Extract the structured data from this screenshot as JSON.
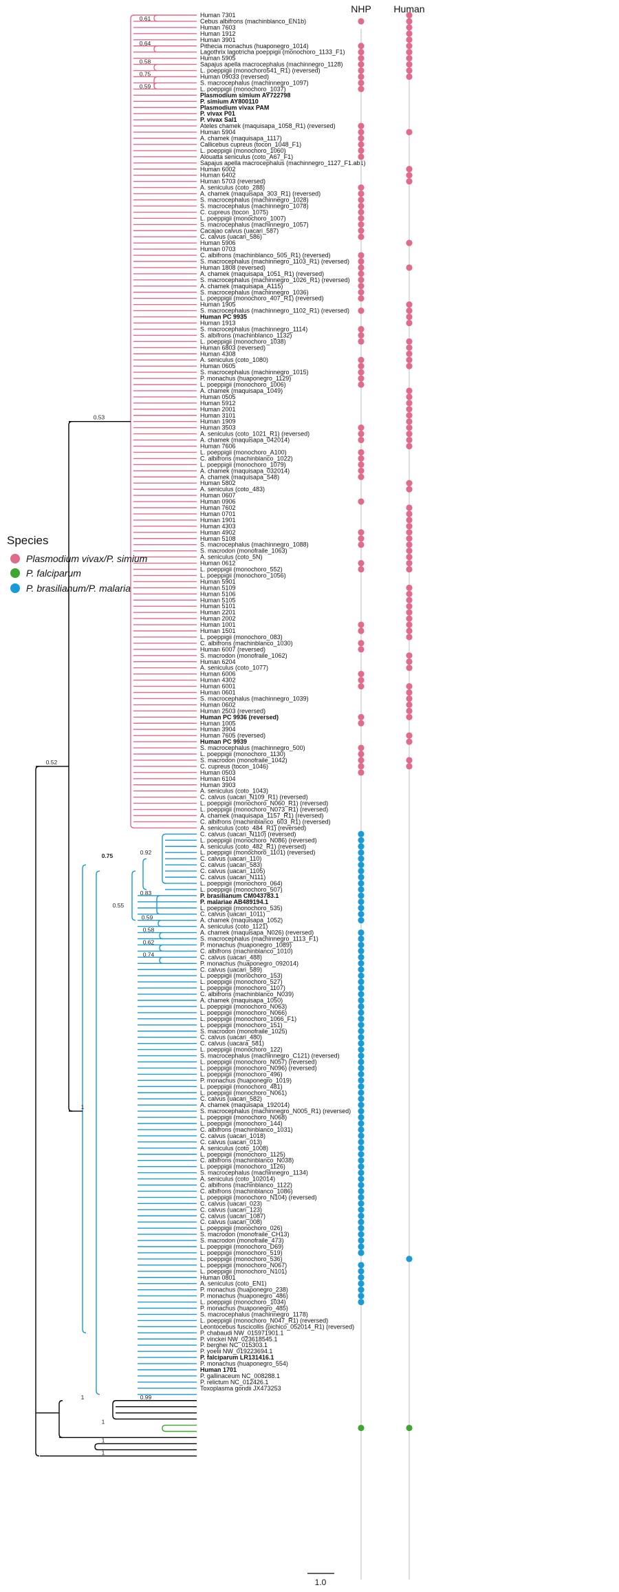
{
  "colors": {
    "vivax": "#e06b8b",
    "brasilianum": "#1a9ad6",
    "falciparum": "#3ea52e",
    "outgroup": "#000000",
    "track": "#d4d4d4"
  },
  "columns": {
    "nhp": "NHP",
    "human": "Human"
  },
  "legend": {
    "title": "Species",
    "items": [
      {
        "label": "Plasmodium vivax/P. simium",
        "color": "#e06b8b"
      },
      {
        "label": "P. falciparum",
        "color": "#3ea52e"
      },
      {
        "label": "P. brasilianum/P. malaria",
        "color": "#1a9ad6"
      }
    ]
  },
  "scale_bar": {
    "label": "1.0"
  },
  "clades": {
    "vivax": {
      "count": 133
    },
    "brasilianum": {
      "count": 92
    }
  },
  "supports": {
    "root_inner": "0.52",
    "vivax": "0.53",
    "brasilianum": "1",
    "brasilianum_sub": "0.75",
    "n92": "0.92",
    "n55": "0.55",
    "n83": "0.83",
    "n59": "0.59",
    "n58": "0.58",
    "n62": "0.62",
    "n74": "0.74",
    "v61": "0.61",
    "v64": "0.64",
    "v58": "0.58",
    "v75": "0.75",
    "v59": "0.59",
    "o99": "0.99",
    "o1a": "1",
    "o1b": "1",
    "o1c": "1",
    "o1d": "1"
  },
  "tips": [
    "Human 7301",
    "Cebus albifrons (machinblanco_EN1b)",
    "Human 7603",
    "Human 1912",
    "Human 3901",
    "Pithecia monachus (huaponegro_1014)",
    "Lagothrix lagotricha poeppigii (monochoro_1133_F1)",
    "Human 5905",
    "Sapajus apella macrocephalus (machinnegro_1128)",
    "L. poeppigii (monochoro541_R1) (reversed)",
    "Human 09033 (reversed)",
    "S. macrocephalus (machinnegro_1097)",
    "L. poeppigii (monochoro_1037)",
    "Plasmodium simium AY722798",
    "P. simium AY800110",
    "Plasmodium vivax PAM",
    "P. vivax P01",
    "P. vivax Sal1",
    "Ateles chamek (maquisapa_1058_R1) (reversed)",
    "Human 5904",
    "A. chamek (maquisapa_1117)",
    "Callicebus cupreus (tocon_1048_F1)",
    "L. poeppigii (monochoro_1060)",
    "Alouatta seniculus (coto_A67_F1)",
    "Sapajus apella macrocephalus (machinnegro_1127_F1.ab1)",
    "Human 6002",
    "Human 6402",
    "Human 5703 (reversed)",
    "A. seniculus (coto_288)",
    "A. chamek (maquisapa_303_R1) (reversed)",
    "S. macrocephalus (machinnegro_1028)",
    "S. macrocephalus (machinnegro_1078)",
    "C. cupreus (tocon_1075)",
    "L. poeppigii (monochoro_1007)",
    "S. macrocephalus (machinnegro_1057)",
    "Cacajao calvus (uacari_587)",
    "C. calvus (uacari_586)",
    "Human 5906",
    "Human 0703",
    "C. albifrons (machinblanco_505_R1) (reversed)",
    "S. macrocephalus (machinnegro_1103_R1) (reversed)",
    "Human 1808 (reversed)",
    "A. chamek (maquisapa_1051_R1) (reversed)",
    "S. macrocephalus (machinnegro_1026_R1) (reversed)",
    "A. chamek (maquisapa_A115)",
    "S. macrocephalus (machinnegro_1036)",
    "L. poeppigii (monochoro_407_R1) (reversed)",
    "Human 1905",
    "S. macrocephalus (machinnegro_1102_R1) (reversed)",
    "Human PC 9935",
    "Human 1913",
    "S. macrocephalus (machinnegro_1114)",
    "S. albifrons (machinblanco_1132)",
    "L. poeppigii (monochoro_1038)",
    "Human 6803 (reversed)",
    "Human 4308",
    "A. seniculus (coto_1080)",
    "Human 0605",
    "S. macrocephalus (machinnegro_1015)",
    "P. monachus (huaponegro_1129)",
    "L. poeppigii (monochoro_1006)",
    "A. chamek (maquisapa_1049)",
    "Human 0505",
    "Human 5912",
    "Human 2001",
    "Human 3101",
    "Human 1909",
    "Human 3503",
    "A. seniculus (coto_1021_R1) (reversed)",
    "A. chamek (maquisapa_042014)",
    "Human 7606",
    "L. poeppigii (monochoro_A100)",
    "C. albifrons (machinblanco_1022)",
    "L. poeppigii (monochoro_1079)",
    "A. chamek (maquisapa_032014)",
    "A. chamek (maquisapa_548)",
    "Human 5802",
    "A. seniculus (coto_483)",
    "Human 0607",
    "Human 0906",
    "Human 7602",
    "Human 0701",
    "Human 1901",
    "Human 4303",
    "Human 4902",
    "Human 5108",
    "S. macrocephalus (machinnegro_1088)",
    "S. macrodon (monofraile_1063)",
    "A. seniculus (coto_5N)",
    "Human 0612",
    "L. poeppigii (monochoro_552)",
    "L. poeppigii (monochoro_1056)",
    "Human 5901",
    "Human 5109",
    "Human 5106",
    "Human 5105",
    "Human 5101",
    "Human 2201",
    "Human 2002",
    "Human 1001",
    "Human 1501",
    "L. poeppigii (monochoro_083)",
    "C. albifrons (machinblanco_1030)",
    "Human 6007 (reversed)",
    "S. macrodon (monofraile_1062)",
    "Human 6204",
    "A. seniculus (coto_1077)",
    "Human 6006",
    "Human 4302",
    "Human 6001",
    "Human 0601",
    "S. macrocephalus (machinnegro_1039)",
    "Human 0602",
    "Human 2503 (reversed)",
    "Human PC 9936 (reversed)",
    "Human 1005",
    "Human 3904",
    "Human 7605 (reversed)",
    "Human PC 9939",
    "S. macrocephalus (machinnegro_500)",
    "L. poeppigii (monochoro_1130)",
    "S. macrodon (monofraile_1042)",
    "C. cupreus (tocon_1046)",
    "Human 0503",
    "Human 6104",
    "Human 3903",
    "A. seniculus (coto_1043)",
    "C. calvus (uacari_N109_R1) (reversed)",
    "L. poeppigii (monochoro_N060_R1) (reversed)",
    "L. poeppigii (monochoro_N073_R1) (reversed)",
    "A. chamek (maquisapa_1157_R1) (reversed)",
    "C. albifrons (machinblanco_603_R1) (reversed)",
    "A. seniculus (coto_484_R1) (reversed)",
    "C. calvus (uacari_N110) (reversed)",
    "L. poeppigii (monochoro_N086) (reversed)",
    "A. seniculus (coto_482_R1) (reversed)",
    "L. poeppigii (monochoro_1101) (reversed)",
    "C. calvus (uacari_110)",
    "C. calvus (uacari_583)",
    "C. calvus (uacari_1105)",
    "C. calvus (uacari_N111)",
    "L. poeppigii (monochoro_064)",
    "L. poeppigii (monochoro_507)",
    "P. brasilianum CM043783.1",
    "P. malariae AB489194.1",
    "L. poeppigii (monochoro_535)",
    "C. calvus (uacari_1011)",
    "A. chamek (maquisapa_1052)",
    "A. seniculus (coto_1121)",
    "A. chamek (maquisapa_N026) (reversed)",
    "S. macrocephalus (machinnegro_1113_F1)",
    "P. monachus (huaponegro_1089)",
    "C. albifrons (machinblanco_1010)",
    "C. calvus (uacari_488)",
    "P. monachus (huaponegro_092014)",
    "C. calvus (uacari_589)",
    "L. poeppigii (monochoro_153)",
    "L. poeppigii (monochoro_527)",
    "L. poeppigii (monochoro_1107)",
    "C. albifrons (machinblanco_N039)",
    "A. chamek (maquisapa_1050)",
    "L. poeppigii (monochoro_N063)",
    "L. poeppigii (monochoro_N066)",
    "L. poeppigii (monochoro_1066_F1)",
    "L. poeppigii (monochoro_151)",
    "S. macrodon (monofraile_1025)",
    "C. calvus (uacari_480)",
    "C. calvus (uacara_581)",
    "L. poeppigii (monochoro_122)",
    "S. macrocephalus (machinnegro_C121) (reversed)",
    "L. poeppigii (monochoro_N057) (reversed)",
    "L. poeppigii (monochoro_N096) (reversed)",
    "L. poeppigii (monochoro_496)",
    "P. monachus (huaponegro_1019)",
    "L. poeppigii (monochoro_481)",
    "L. poeppigii (monochoro_N061)",
    "C. calvus (uacari_582)",
    "A. chamek (maquisapa_192014)",
    "S. macrocephalus (machinnegro_N005_R1) (reversed)",
    "L. poeppigii (monochoro_N068)",
    "L. poeppigii (monochoro_144)",
    "C. albifrons (machinblanco_1031)",
    "C. calvus (uacari_1018)",
    "C. calvus (uacari_013)",
    "A. seniculus (coto_1008)",
    "L. poeppigii (monochoro_1125)",
    "C. albifrons (machinblanco_N038)",
    "L. poeppigii (monochoro_1126)",
    "S. macrocephalus (machinnegro_1134)",
    "A. seniculus (coto_102014)",
    "C. albifrons (machinblanco_1122)",
    "C. albifrons (machinblanco_1086)",
    "L. poeppigii (monochoro_N104) (reversed)",
    "C. calvus (uacari_023)",
    "C. calvus (uacari_123)",
    "C. calvus (uacari_1087)",
    "C. calvus (uacari_008)",
    "L. poeppigii (monochoro_026)",
    "S. macrodon (monofraile_CH13)",
    "S. macrodon (monofraile_473)",
    "L. poeppigii (monochoro_D69)",
    "L. poeppigii (monochoro_519)",
    "L. poeppigii (monochoro_536)",
    "L. poeppigii (monochoro_N067)",
    "L. poeppigii (monochoro_N101)",
    "Human 0801",
    "A. seniculus (coto_EN1)",
    "P. monachus (huaponegro_238)",
    "P. monachus (huaponegro_486)",
    "L. poeppigii (monochoro_1034)",
    "P. monachus (huaponegro_485)",
    "S. macrocephalus (machinnegro_1178)",
    "L. poeppigii (monochoro_N047_R1) (reversed)",
    "Leontocebus fuscicollis (pichico_052014_R1) (reversed)",
    "P. chabaudi NW_015971901.1",
    "P. vinckei NW_023618545.1",
    "P. berghei NC_015303.1",
    "P. yoelii NW_019223694.1",
    "P. falciparum LR131416.1",
    "P. monachus (huaponegro_554)",
    "Human 1701",
    "P. gallinaceum NC_008288.1",
    "P. relictum NC_012426.1",
    "Toxoplasma gondii JX473253"
  ],
  "bold_tips": [
    "Plasmodium simium AY722798",
    "P. simium AY800110",
    "Plasmodium vivax PAM",
    "P. vivax P01",
    "P. vivax Sal1",
    "Human PC 9935",
    "Human PC 9936 (reversed)",
    "Human PC 9939",
    "P. brasilianum CM043783.1",
    "P. malariae AB489194.1",
    "P. falciparum LR131416.1",
    "Human 1701"
  ],
  "marker_groups": {
    "vivax_human_ranges": [
      [
        0,
        11
      ],
      [
        19,
        20
      ],
      [
        25,
        28
      ],
      [
        37,
        38
      ],
      [
        41,
        42
      ],
      [
        47,
        51
      ],
      [
        53,
        58
      ],
      [
        61,
        71
      ],
      [
        76,
        78
      ],
      [
        80,
        91
      ],
      [
        93,
        102
      ],
      [
        104,
        107
      ],
      [
        109,
        115
      ],
      [
        117,
        119
      ],
      [
        121,
        123
      ]
    ],
    "vivax_nhp_ranges": [
      [
        1,
        2
      ],
      [
        5,
        13
      ],
      [
        18,
        24
      ],
      [
        28,
        37
      ],
      [
        39,
        47
      ],
      [
        48,
        49
      ],
      [
        51,
        54
      ],
      [
        56,
        61
      ],
      [
        67,
        70
      ],
      [
        71,
        76
      ],
      [
        79,
        80
      ],
      [
        84,
        87
      ],
      [
        89,
        91
      ],
      [
        99,
        101
      ],
      [
        102,
        104
      ],
      [
        107,
        110
      ],
      [
        114,
        116
      ],
      [
        119,
        124
      ]
    ],
    "brasilianum_nhp_ranges": [
      [
        0,
        15
      ],
      [
        16,
        69
      ],
      [
        70,
        77
      ]
    ],
    "brasilianum_human": [
      69
    ],
    "falciparum_rows": [
      225,
      226
    ]
  }
}
